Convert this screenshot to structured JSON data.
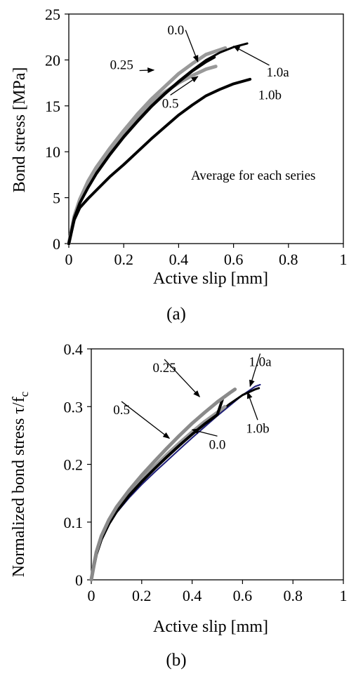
{
  "chart_data": [
    {
      "type": "line",
      "panel_label": "(a)",
      "xlabel": "Active slip [mm]",
      "ylabel": "Bond stress [MPa]",
      "xlim": [
        0,
        1
      ],
      "ylim": [
        0,
        25
      ],
      "xticks": [
        "0",
        "0.2",
        "0.4",
        "0.6",
        "0.8",
        "1"
      ],
      "yticks": [
        "0",
        "5",
        "10",
        "15",
        "20",
        "25"
      ],
      "grid": false,
      "annotation_text": "Average for each series",
      "series": [
        {
          "name": "0.0",
          "color": "#999999",
          "width": 5,
          "points": [
            [
              0,
              0
            ],
            [
              0.01,
              1.5
            ],
            [
              0.02,
              3.0
            ],
            [
              0.04,
              4.8
            ],
            [
              0.07,
              6.8
            ],
            [
              0.1,
              8.3
            ],
            [
              0.15,
              10.4
            ],
            [
              0.2,
              12.3
            ],
            [
              0.25,
              14.1
            ],
            [
              0.3,
              15.7
            ],
            [
              0.35,
              17.1
            ],
            [
              0.4,
              18.5
            ],
            [
              0.45,
              19.6
            ],
            [
              0.5,
              20.6
            ],
            [
              0.55,
              21.1
            ],
            [
              0.57,
              21.3
            ]
          ]
        },
        {
          "name": "0.25",
          "color": "#999999",
          "width": 5,
          "points": [
            [
              0,
              0
            ],
            [
              0.01,
              1.5
            ],
            [
              0.02,
              2.9
            ],
            [
              0.04,
              4.7
            ],
            [
              0.07,
              6.6
            ],
            [
              0.1,
              8.1
            ],
            [
              0.15,
              10.1
            ],
            [
              0.2,
              12.0
            ],
            [
              0.25,
              13.7
            ],
            [
              0.3,
              15.3
            ],
            [
              0.35,
              16.5
            ],
            [
              0.4,
              17.5
            ],
            [
              0.45,
              18.3
            ],
            [
              0.5,
              19.0
            ],
            [
              0.535,
              19.3
            ]
          ]
        },
        {
          "name": "0.5",
          "color": "#000000",
          "width": 4,
          "points": [
            [
              0,
              0
            ],
            [
              0.01,
              1.4
            ],
            [
              0.02,
              2.8
            ],
            [
              0.04,
              4.4
            ],
            [
              0.07,
              6.1
            ],
            [
              0.1,
              7.6
            ],
            [
              0.15,
              9.7
            ],
            [
              0.2,
              11.6
            ],
            [
              0.25,
              13.3
            ],
            [
              0.3,
              14.9
            ],
            [
              0.35,
              16.3
            ],
            [
              0.4,
              17.6
            ],
            [
              0.45,
              18.8
            ],
            [
              0.5,
              19.8
            ],
            [
              0.53,
              20.3
            ]
          ]
        },
        {
          "name": "1.0a",
          "color": "#000000",
          "width": 3,
          "points": [
            [
              0,
              0
            ],
            [
              0.01,
              1.4
            ],
            [
              0.02,
              2.8
            ],
            [
              0.04,
              4.4
            ],
            [
              0.07,
              6.1
            ],
            [
              0.1,
              7.7
            ],
            [
              0.15,
              9.8
            ],
            [
              0.2,
              11.7
            ],
            [
              0.25,
              13.4
            ],
            [
              0.3,
              15.0
            ],
            [
              0.35,
              16.4
            ],
            [
              0.4,
              17.7
            ],
            [
              0.45,
              18.9
            ],
            [
              0.5,
              20.0
            ],
            [
              0.55,
              20.8
            ],
            [
              0.6,
              21.4
            ],
            [
              0.65,
              21.8
            ]
          ]
        },
        {
          "name": "1.0b",
          "color": "#000000",
          "width": 4,
          "points": [
            [
              0,
              0
            ],
            [
              0.01,
              1.3
            ],
            [
              0.02,
              2.6
            ],
            [
              0.04,
              3.9
            ],
            [
              0.07,
              4.9
            ],
            [
              0.1,
              5.8
            ],
            [
              0.15,
              7.3
            ],
            [
              0.2,
              8.6
            ],
            [
              0.25,
              10.0
            ],
            [
              0.3,
              11.4
            ],
            [
              0.35,
              12.7
            ],
            [
              0.4,
              14.0
            ],
            [
              0.45,
              15.1
            ],
            [
              0.5,
              16.1
            ],
            [
              0.55,
              16.8
            ],
            [
              0.6,
              17.4
            ],
            [
              0.66,
              17.9
            ]
          ]
        }
      ],
      "labels": [
        {
          "text": "0.0",
          "x": 0.42,
          "y": 22.8,
          "anchor": "end",
          "arrow_to": [
            0.47,
            19.8
          ]
        },
        {
          "text": "0.25",
          "x": 0.15,
          "y": 19.0,
          "anchor": "start",
          "arrow_to": [
            0.31,
            18.9
          ]
        },
        {
          "text": "0.5",
          "x": 0.37,
          "y": 14.8,
          "anchor": "middle",
          "arrow_to": [
            0.47,
            18.2
          ]
        },
        {
          "text": "1.0a",
          "x": 0.72,
          "y": 18.2,
          "anchor": "start",
          "arrow_to": [
            0.6,
            21.5
          ]
        },
        {
          "text": "1.0b",
          "x": 0.69,
          "y": 15.7,
          "anchor": "start",
          "arrow_to": null
        }
      ]
    },
    {
      "type": "line",
      "panel_label": "(b)",
      "xlabel": "Active slip [mm]",
      "ylabel": "Normalized bond stress τ/f",
      "ylabel_subscript": "c",
      "xlim": [
        0,
        1
      ],
      "ylim": [
        0,
        0.4
      ],
      "xticks": [
        "0",
        "0.2",
        "0.4",
        "0.6",
        "0.8",
        "1"
      ],
      "yticks": [
        "0",
        "0.1",
        "0.2",
        "0.3",
        "0.4"
      ],
      "grid": false,
      "series": [
        {
          "name": "0.0",
          "color": "#1f1f7a",
          "width": 2,
          "points": [
            [
              0,
              0
            ],
            [
              0.01,
              0.022
            ],
            [
              0.02,
              0.042
            ],
            [
              0.04,
              0.068
            ],
            [
              0.07,
              0.095
            ],
            [
              0.1,
              0.116
            ],
            [
              0.15,
              0.142
            ],
            [
              0.2,
              0.165
            ],
            [
              0.25,
              0.186
            ],
            [
              0.3,
              0.206
            ],
            [
              0.35,
              0.226
            ],
            [
              0.4,
              0.246
            ],
            [
              0.45,
              0.265
            ],
            [
              0.5,
              0.284
            ],
            [
              0.55,
              0.302
            ],
            [
              0.6,
              0.32
            ],
            [
              0.65,
              0.335
            ],
            [
              0.67,
              0.338
            ]
          ]
        },
        {
          "name": "1.0a",
          "color": "#000000",
          "width": 3,
          "points": [
            [
              0,
              0
            ],
            [
              0.01,
              0.023
            ],
            [
              0.02,
              0.044
            ],
            [
              0.04,
              0.07
            ],
            [
              0.07,
              0.097
            ],
            [
              0.1,
              0.118
            ],
            [
              0.15,
              0.146
            ],
            [
              0.2,
              0.17
            ],
            [
              0.25,
              0.192
            ],
            [
              0.3,
              0.212
            ],
            [
              0.35,
              0.232
            ],
            [
              0.4,
              0.252
            ],
            [
              0.45,
              0.27
            ],
            [
              0.5,
              0.288
            ],
            [
              0.55,
              0.305
            ],
            [
              0.6,
              0.32
            ],
            [
              0.65,
              0.33
            ],
            [
              0.665,
              0.332
            ]
          ]
        },
        {
          "name": "0.5",
          "color": "#999999",
          "width": 5,
          "points": [
            [
              0,
              0
            ],
            [
              0.01,
              0.024
            ],
            [
              0.02,
              0.046
            ],
            [
              0.04,
              0.073
            ],
            [
              0.07,
              0.1
            ],
            [
              0.1,
              0.121
            ],
            [
              0.15,
              0.149
            ],
            [
              0.2,
              0.173
            ],
            [
              0.25,
              0.196
            ],
            [
              0.3,
              0.217
            ],
            [
              0.35,
              0.237
            ],
            [
              0.4,
              0.256
            ],
            [
              0.45,
              0.274
            ],
            [
              0.5,
              0.29
            ],
            [
              0.53,
              0.3
            ]
          ]
        },
        {
          "name": "1.0b",
          "color": "#000000",
          "width": 4,
          "points": [
            [
              0,
              0
            ],
            [
              0.01,
              0.023
            ],
            [
              0.02,
              0.044
            ],
            [
              0.04,
              0.07
            ],
            [
              0.07,
              0.097
            ],
            [
              0.1,
              0.118
            ],
            [
              0.15,
              0.146
            ],
            [
              0.2,
              0.17
            ],
            [
              0.25,
              0.192
            ],
            [
              0.3,
              0.213
            ],
            [
              0.35,
              0.233
            ],
            [
              0.4,
              0.252
            ],
            [
              0.45,
              0.27
            ],
            [
              0.5,
              0.286
            ],
            [
              0.52,
              0.312
            ]
          ]
        },
        {
          "name": "0.25",
          "color": "#8a8a8a",
          "width": 5,
          "points": [
            [
              0,
              0
            ],
            [
              0.01,
              0.025
            ],
            [
              0.02,
              0.048
            ],
            [
              0.04,
              0.076
            ],
            [
              0.07,
              0.104
            ],
            [
              0.1,
              0.126
            ],
            [
              0.15,
              0.155
            ],
            [
              0.2,
              0.181
            ],
            [
              0.25,
              0.205
            ],
            [
              0.3,
              0.228
            ],
            [
              0.35,
              0.25
            ],
            [
              0.4,
              0.271
            ],
            [
              0.45,
              0.29
            ],
            [
              0.5,
              0.308
            ],
            [
              0.55,
              0.324
            ],
            [
              0.57,
              0.33
            ]
          ]
        }
      ],
      "labels": [
        {
          "text": "0.25",
          "x": 0.29,
          "y": 0.36,
          "anchor": "middle",
          "arrow_to": [
            0.43,
            0.317
          ]
        },
        {
          "text": "1.0a",
          "x": 0.67,
          "y": 0.37,
          "anchor": "middle",
          "arrow_to": [
            0.63,
            0.335
          ]
        },
        {
          "text": "0.5",
          "x": 0.12,
          "y": 0.287,
          "anchor": "middle",
          "arrow_to": [
            0.31,
            0.245
          ]
        },
        {
          "text": "1.0b",
          "x": 0.66,
          "y": 0.255,
          "anchor": "middle",
          "arrow_to": [
            0.62,
            0.325
          ]
        },
        {
          "text": "0.0",
          "x": 0.5,
          "y": 0.227,
          "anchor": "middle",
          "arrow_to": [
            0.4,
            0.26
          ]
        }
      ]
    }
  ]
}
